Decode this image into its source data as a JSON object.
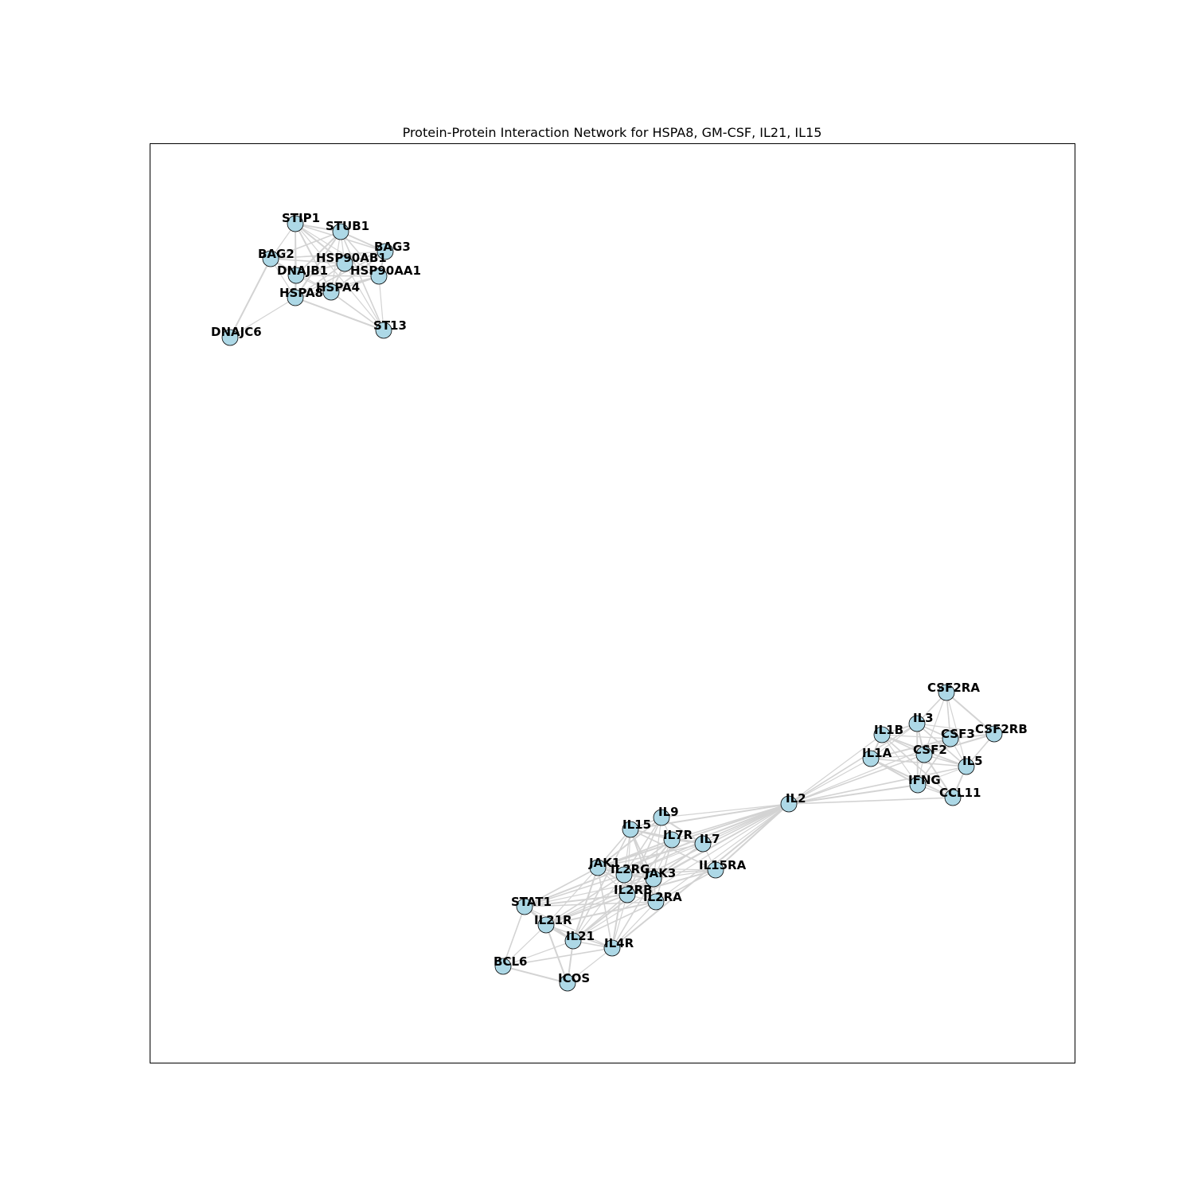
{
  "title": "Protein-Protein Interaction Network for HSPA8, GM-CSF, IL21, IL15",
  "colors": {
    "node_fill": "#add8e6",
    "node_stroke": "#000000",
    "edge": "#d3d3d3",
    "label": "#000000",
    "frame": "#000000"
  },
  "nodes": [
    {
      "id": "STIP1",
      "label": "STIP1"
    },
    {
      "id": "STUB1",
      "label": "STUB1"
    },
    {
      "id": "BAG3",
      "label": "BAG3"
    },
    {
      "id": "BAG2",
      "label": "BAG2"
    },
    {
      "id": "HSP90AB1",
      "label": "HSP90AB1"
    },
    {
      "id": "DNAJB1",
      "label": "DNAJB1"
    },
    {
      "id": "HSP90AA1",
      "label": "HSP90AA1"
    },
    {
      "id": "HSPA4",
      "label": "HSPA4"
    },
    {
      "id": "HSPA8",
      "label": "HSPA8"
    },
    {
      "id": "DNAJC6",
      "label": "DNAJC6"
    },
    {
      "id": "ST13",
      "label": "ST13"
    },
    {
      "id": "CSF2RA",
      "label": "CSF2RA"
    },
    {
      "id": "IL3",
      "label": "IL3"
    },
    {
      "id": "IL1B",
      "label": "IL1B"
    },
    {
      "id": "CSF3",
      "label": "CSF3"
    },
    {
      "id": "CSF2RB",
      "label": "CSF2RB"
    },
    {
      "id": "IL1A",
      "label": "IL1A"
    },
    {
      "id": "CSF2",
      "label": "CSF2"
    },
    {
      "id": "IL5",
      "label": "IL5"
    },
    {
      "id": "IFNG",
      "label": "IFNG"
    },
    {
      "id": "CCL11",
      "label": "CCL11"
    },
    {
      "id": "IL2",
      "label": "IL2"
    },
    {
      "id": "IL9",
      "label": "IL9"
    },
    {
      "id": "IL15",
      "label": "IL15"
    },
    {
      "id": "IL7R",
      "label": "IL7R"
    },
    {
      "id": "IL7",
      "label": "IL7"
    },
    {
      "id": "JAK1",
      "label": "JAK1"
    },
    {
      "id": "IL2RG",
      "label": "IL2RG"
    },
    {
      "id": "JAK3",
      "label": "JAK3"
    },
    {
      "id": "IL15RA",
      "label": "IL15RA"
    },
    {
      "id": "IL2RB",
      "label": "IL2RB"
    },
    {
      "id": "IL2RA",
      "label": "IL2RA"
    },
    {
      "id": "STAT1",
      "label": "STAT1"
    },
    {
      "id": "IL21R",
      "label": "IL21R"
    },
    {
      "id": "IL21",
      "label": "IL21"
    },
    {
      "id": "IL4R",
      "label": "IL4R"
    },
    {
      "id": "BCL6",
      "label": "BCL6"
    },
    {
      "id": "ICOS",
      "label": "ICOS"
    }
  ],
  "edges": [
    [
      "STIP1",
      "STUB1"
    ],
    [
      "STIP1",
      "BAG3"
    ],
    [
      "STIP1",
      "BAG2"
    ],
    [
      "STIP1",
      "HSP90AB1"
    ],
    [
      "STIP1",
      "DNAJB1"
    ],
    [
      "STIP1",
      "HSP90AA1"
    ],
    [
      "STIP1",
      "HSPA4"
    ],
    [
      "STIP1",
      "HSPA8"
    ],
    [
      "STIP1",
      "ST13"
    ],
    [
      "STUB1",
      "BAG3"
    ],
    [
      "STUB1",
      "BAG2"
    ],
    [
      "STUB1",
      "HSP90AB1"
    ],
    [
      "STUB1",
      "DNAJB1"
    ],
    [
      "STUB1",
      "HSP90AA1"
    ],
    [
      "STUB1",
      "HSPA4"
    ],
    [
      "STUB1",
      "HSPA8"
    ],
    [
      "STUB1",
      "ST13"
    ],
    [
      "BAG3",
      "HSP90AB1"
    ],
    [
      "BAG3",
      "HSP90AA1"
    ],
    [
      "BAG3",
      "HSPA8"
    ],
    [
      "BAG3",
      "DNAJB1"
    ],
    [
      "BAG3",
      "HSPA4"
    ],
    [
      "BAG3",
      "BAG2"
    ],
    [
      "BAG2",
      "HSPA8"
    ],
    [
      "BAG2",
      "DNAJB1"
    ],
    [
      "BAG2",
      "HSP90AB1"
    ],
    [
      "BAG2",
      "HSPA4"
    ],
    [
      "BAG2",
      "DNAJC6"
    ],
    [
      "HSP90AB1",
      "HSP90AA1"
    ],
    [
      "HSP90AB1",
      "DNAJB1"
    ],
    [
      "HSP90AB1",
      "HSPA4"
    ],
    [
      "HSP90AB1",
      "HSPA8"
    ],
    [
      "HSP90AB1",
      "ST13"
    ],
    [
      "DNAJB1",
      "HSPA8"
    ],
    [
      "DNAJB1",
      "HSP90AA1"
    ],
    [
      "DNAJB1",
      "HSPA4"
    ],
    [
      "HSP90AA1",
      "HSPA4"
    ],
    [
      "HSP90AA1",
      "HSPA8"
    ],
    [
      "HSP90AA1",
      "ST13"
    ],
    [
      "HSPA4",
      "HSPA8"
    ],
    [
      "HSPA4",
      "ST13"
    ],
    [
      "HSPA8",
      "DNAJC6"
    ],
    [
      "HSPA8",
      "ST13"
    ],
    [
      "CSF2RA",
      "IL3"
    ],
    [
      "CSF2RA",
      "CSF2"
    ],
    [
      "CSF2RA",
      "CSF2RB"
    ],
    [
      "CSF2RA",
      "CSF3"
    ],
    [
      "CSF2RA",
      "IL5"
    ],
    [
      "IL3",
      "IL1B"
    ],
    [
      "IL3",
      "CSF3"
    ],
    [
      "IL3",
      "CSF2RB"
    ],
    [
      "IL3",
      "CSF2"
    ],
    [
      "IL3",
      "IL5"
    ],
    [
      "IL3",
      "IL1A"
    ],
    [
      "IL3",
      "IFNG"
    ],
    [
      "IL3",
      "IL2"
    ],
    [
      "IL1B",
      "CSF3"
    ],
    [
      "IL1B",
      "IL1A"
    ],
    [
      "IL1B",
      "CSF2"
    ],
    [
      "IL1B",
      "IFNG"
    ],
    [
      "IL1B",
      "IL5"
    ],
    [
      "IL1B",
      "CCL11"
    ],
    [
      "IL1B",
      "IL2"
    ],
    [
      "CSF3",
      "CSF2RB"
    ],
    [
      "CSF3",
      "CSF2"
    ],
    [
      "CSF3",
      "IL5"
    ],
    [
      "CSF3",
      "IL1A"
    ],
    [
      "CSF3",
      "IFNG"
    ],
    [
      "CSF3",
      "IL2"
    ],
    [
      "CSF2RB",
      "CSF2"
    ],
    [
      "CSF2RB",
      "IL5"
    ],
    [
      "IL1A",
      "CSF2"
    ],
    [
      "IL1A",
      "IFNG"
    ],
    [
      "IL1A",
      "IL5"
    ],
    [
      "IL1A",
      "IL2"
    ],
    [
      "IL1A",
      "CCL11"
    ],
    [
      "CSF2",
      "IL5"
    ],
    [
      "CSF2",
      "IFNG"
    ],
    [
      "CSF2",
      "CCL11"
    ],
    [
      "CSF2",
      "IL2"
    ],
    [
      "IL5",
      "IFNG"
    ],
    [
      "IL5",
      "CCL11"
    ],
    [
      "IL5",
      "IL2"
    ],
    [
      "IFNG",
      "CCL11"
    ],
    [
      "IFNG",
      "IL2"
    ],
    [
      "CCL11",
      "IL2"
    ],
    [
      "IL2",
      "IL9"
    ],
    [
      "IL2",
      "IL15"
    ],
    [
      "IL2",
      "IL7R"
    ],
    [
      "IL2",
      "IL7"
    ],
    [
      "IL2",
      "JAK1"
    ],
    [
      "IL2",
      "IL2RG"
    ],
    [
      "IL2",
      "JAK3"
    ],
    [
      "IL2",
      "IL15RA"
    ],
    [
      "IL2",
      "IL2RB"
    ],
    [
      "IL2",
      "IL2RA"
    ],
    [
      "IL2",
      "STAT1"
    ],
    [
      "IL2",
      "IL21R"
    ],
    [
      "IL2",
      "IL21"
    ],
    [
      "IL2",
      "IL4R"
    ],
    [
      "IL9",
      "IL15"
    ],
    [
      "IL9",
      "IL7R"
    ],
    [
      "IL9",
      "IL7"
    ],
    [
      "IL9",
      "IL2RG"
    ],
    [
      "IL9",
      "JAK3"
    ],
    [
      "IL9",
      "JAK1"
    ],
    [
      "IL9",
      "IL2RB"
    ],
    [
      "IL15",
      "IL7R"
    ],
    [
      "IL15",
      "IL7"
    ],
    [
      "IL15",
      "JAK1"
    ],
    [
      "IL15",
      "IL2RG"
    ],
    [
      "IL15",
      "JAK3"
    ],
    [
      "IL15",
      "IL15RA"
    ],
    [
      "IL15",
      "IL2RB"
    ],
    [
      "IL15",
      "IL2RA"
    ],
    [
      "IL15",
      "IL21"
    ],
    [
      "IL7R",
      "IL7"
    ],
    [
      "IL7R",
      "JAK1"
    ],
    [
      "IL7R",
      "IL2RG"
    ],
    [
      "IL7R",
      "JAK3"
    ],
    [
      "IL7R",
      "IL2RB"
    ],
    [
      "IL7R",
      "IL2RA"
    ],
    [
      "IL7",
      "IL2RG"
    ],
    [
      "IL7",
      "JAK3"
    ],
    [
      "IL7",
      "JAK1"
    ],
    [
      "IL7",
      "IL15RA"
    ],
    [
      "JAK1",
      "IL2RG"
    ],
    [
      "JAK1",
      "JAK3"
    ],
    [
      "JAK1",
      "IL2RB"
    ],
    [
      "JAK1",
      "IL2RA"
    ],
    [
      "JAK1",
      "STAT1"
    ],
    [
      "JAK1",
      "IL21R"
    ],
    [
      "JAK1",
      "IL21"
    ],
    [
      "JAK1",
      "IL4R"
    ],
    [
      "JAK1",
      "IL15RA"
    ],
    [
      "IL2RG",
      "JAK3"
    ],
    [
      "IL2RG",
      "IL15RA"
    ],
    [
      "IL2RG",
      "IL2RB"
    ],
    [
      "IL2RG",
      "IL2RA"
    ],
    [
      "IL2RG",
      "IL21R"
    ],
    [
      "IL2RG",
      "IL21"
    ],
    [
      "IL2RG",
      "IL4R"
    ],
    [
      "IL2RG",
      "STAT1"
    ],
    [
      "JAK3",
      "IL15RA"
    ],
    [
      "JAK3",
      "IL2RB"
    ],
    [
      "JAK3",
      "IL2RA"
    ],
    [
      "JAK3",
      "IL21R"
    ],
    [
      "JAK3",
      "IL21"
    ],
    [
      "JAK3",
      "IL4R"
    ],
    [
      "JAK3",
      "STAT1"
    ],
    [
      "IL15RA",
      "IL2RB"
    ],
    [
      "IL15RA",
      "IL2RA"
    ],
    [
      "IL2RB",
      "IL2RA"
    ],
    [
      "IL2RB",
      "IL21R"
    ],
    [
      "IL2RB",
      "IL21"
    ],
    [
      "IL2RB",
      "IL4R"
    ],
    [
      "IL2RB",
      "STAT1"
    ],
    [
      "IL2RA",
      "IL21"
    ],
    [
      "IL2RA",
      "IL4R"
    ],
    [
      "IL2RA",
      "IL21R"
    ],
    [
      "IL2RA",
      "STAT1"
    ],
    [
      "STAT1",
      "IL21R"
    ],
    [
      "STAT1",
      "IL21"
    ],
    [
      "STAT1",
      "BCL6"
    ],
    [
      "STAT1",
      "IL4R"
    ],
    [
      "IL21R",
      "IL21"
    ],
    [
      "IL21R",
      "IL4R"
    ],
    [
      "IL21R",
      "BCL6"
    ],
    [
      "IL21R",
      "ICOS"
    ],
    [
      "IL21",
      "IL4R"
    ],
    [
      "IL21",
      "BCL6"
    ],
    [
      "IL21",
      "ICOS"
    ],
    [
      "IL4R",
      "BCL6"
    ],
    [
      "IL4R",
      "ICOS"
    ],
    [
      "BCL6",
      "ICOS"
    ]
  ]
}
